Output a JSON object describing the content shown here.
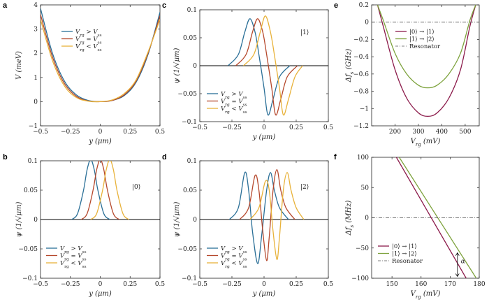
{
  "colors": {
    "blue": "#2a6f97",
    "red": "#b5482c",
    "yellow": "#e8b23a",
    "maroon": "#8b1a4a",
    "green": "#7da23c",
    "dashed": "#555555"
  },
  "chart_data": [
    {
      "panel": "a",
      "type": "line",
      "xlabel": "y (μm)",
      "ylabel": "V (meV)",
      "xlim": [
        -0.5,
        0.5
      ],
      "ylim": [
        -1,
        4
      ],
      "xticks": [
        "−0.5",
        "−0.25",
        "0",
        "0.25",
        "0.5"
      ],
      "yticks": [
        "−1",
        "0",
        "1",
        "2",
        "3",
        "4"
      ],
      "legend": [
        "V_rg > V_ss",
        "V_rg = V_ss",
        "V_rg < V_ss"
      ],
      "series": [
        {
          "name": "V_rg > V_ss",
          "x": [
            -0.5,
            -0.4,
            -0.3,
            -0.2,
            -0.1,
            0,
            0.1,
            0.2,
            0.3,
            0.4,
            0.5
          ],
          "values": [
            3.85,
            2.0,
            0.85,
            0.28,
            0.05,
            0.0,
            0.05,
            0.25,
            0.8,
            1.95,
            3.7
          ]
        },
        {
          "name": "V_rg = V_ss",
          "x": [
            -0.5,
            -0.4,
            -0.3,
            -0.2,
            -0.1,
            0,
            0.1,
            0.2,
            0.3,
            0.4,
            0.5
          ],
          "values": [
            3.6,
            1.85,
            0.75,
            0.22,
            0.03,
            0.0,
            0.05,
            0.28,
            0.85,
            2.0,
            3.55
          ]
        },
        {
          "name": "V_rg < V_ss",
          "x": [
            -0.5,
            -0.4,
            -0.3,
            -0.2,
            -0.1,
            0,
            0.1,
            0.2,
            0.3,
            0.4,
            0.5
          ],
          "values": [
            3.4,
            1.7,
            0.65,
            0.17,
            0.02,
            0.0,
            0.07,
            0.33,
            0.9,
            2.05,
            3.4
          ]
        }
      ]
    },
    {
      "panel": "b",
      "type": "line",
      "xlabel": "y (μm)",
      "ylabel": "ψ (1/√μm)",
      "xlim": [
        -0.5,
        0.5
      ],
      "ylim": [
        -0.1,
        0.1
      ],
      "xticks": [
        "−0.5",
        "−0.25",
        "0",
        "0.25",
        "0.5"
      ],
      "yticks": [
        "−0.1",
        "−0.05",
        "0",
        "0.05",
        "0.1"
      ],
      "state": "|0⟩",
      "legend": [
        "V_rg > V_ss",
        "V_rg = V_ss",
        "V_rg < V_ss"
      ],
      "series": [
        {
          "name": "V_rg > V_ss",
          "x": [
            -0.24,
            -0.19,
            -0.14,
            -0.11,
            -0.08,
            -0.05,
            -0.02,
            0.03,
            0.08
          ],
          "values": [
            0,
            0.01,
            0.05,
            0.085,
            0.102,
            0.085,
            0.05,
            0.01,
            0
          ]
        },
        {
          "name": "V_rg = V_ss",
          "x": [
            -0.16,
            -0.11,
            -0.06,
            -0.03,
            0.0,
            0.03,
            0.06,
            0.11,
            0.16
          ],
          "values": [
            0,
            0.01,
            0.05,
            0.085,
            0.102,
            0.085,
            0.05,
            0.01,
            0
          ]
        },
        {
          "name": "V_rg < V_ss",
          "x": [
            -0.08,
            -0.03,
            0.02,
            0.05,
            0.08,
            0.11,
            0.14,
            0.19,
            0.24
          ],
          "values": [
            0,
            0.01,
            0.05,
            0.085,
            0.102,
            0.085,
            0.05,
            0.01,
            0
          ]
        }
      ]
    },
    {
      "panel": "c",
      "type": "line",
      "xlabel": "y (μm)",
      "ylabel": "ψ (1/√μm)",
      "xlim": [
        -0.5,
        0.5
      ],
      "ylim": [
        -0.1,
        0.1
      ],
      "xticks": [
        "−0.5",
        "−0.25",
        "0",
        "0.25",
        "0.5"
      ],
      "yticks": [
        "−0.1",
        "−0.05",
        "0",
        "0.05",
        "0.1"
      ],
      "state": "|1⟩",
      "legend": [
        "V_rg > V_ss",
        "V_rg = V_ss",
        "V_rg < V_ss"
      ],
      "series": [
        {
          "name": "V_rg > V_ss",
          "x": [
            -0.28,
            -0.2,
            -0.15,
            -0.11,
            -0.07,
            -0.04,
            0.0,
            0.03,
            0.07,
            0.12,
            0.2
          ],
          "values": [
            0,
            0.02,
            0.06,
            0.084,
            0.06,
            0.02,
            -0.04,
            -0.088,
            -0.06,
            -0.02,
            0
          ]
        },
        {
          "name": "V_rg = V_ss",
          "x": [
            -0.22,
            -0.14,
            -0.09,
            -0.05,
            -0.01,
            0.02,
            0.06,
            0.09,
            0.13,
            0.18,
            0.26
          ],
          "values": [
            0,
            0.02,
            0.06,
            0.084,
            0.06,
            0.02,
            -0.04,
            -0.088,
            -0.06,
            -0.02,
            0
          ]
        },
        {
          "name": "V_rg < V_ss",
          "x": [
            -0.16,
            -0.08,
            -0.03,
            0.01,
            0.05,
            0.08,
            0.12,
            0.15,
            0.19,
            0.24,
            0.3
          ],
          "values": [
            0,
            0.02,
            0.06,
            0.089,
            0.06,
            0.02,
            -0.04,
            -0.088,
            -0.06,
            -0.02,
            0
          ]
        }
      ]
    },
    {
      "panel": "d",
      "type": "line",
      "xlabel": "y (μm)",
      "ylabel": "ψ (1/√μm)",
      "xlim": [
        -0.5,
        0.5
      ],
      "ylim": [
        -0.1,
        0.1
      ],
      "xticks": [
        "−0.5",
        "−0.25",
        "0",
        "0.25",
        "0.5"
      ],
      "yticks": [
        "−0.1",
        "−0.05",
        "0",
        "0.05",
        "0.1"
      ],
      "state": "|2⟩",
      "legend": [
        "V_rg > V_ss",
        "V_rg = V_ss",
        "V_rg < V_ss"
      ],
      "series": [
        {
          "name": "V_rg > V_ss",
          "x": [
            -0.27,
            -0.2,
            -0.15,
            -0.12,
            -0.09,
            -0.05,
            -0.02,
            0.02,
            0.05,
            0.08,
            0.12,
            0.19
          ],
          "values": [
            0,
            0.02,
            0.08,
            0.05,
            -0.02,
            -0.075,
            -0.03,
            0.05,
            0.08,
            0.05,
            0.02,
            0
          ]
        },
        {
          "name": "V_rg = V_ss",
          "x": [
            -0.19,
            -0.12,
            -0.07,
            -0.04,
            -0.01,
            0.02,
            0.04,
            0.07,
            0.1,
            0.13,
            0.17,
            0.24
          ],
          "values": [
            0,
            0.02,
            0.075,
            0.05,
            -0.02,
            -0.07,
            -0.03,
            0.05,
            0.085,
            0.05,
            0.02,
            0
          ]
        },
        {
          "name": "V_rg < V_ss",
          "x": [
            -0.11,
            -0.04,
            0.01,
            0.04,
            0.07,
            0.1,
            0.12,
            0.15,
            0.18,
            0.21,
            0.25,
            0.31
          ],
          "values": [
            0,
            0.02,
            0.065,
            0.05,
            -0.02,
            -0.068,
            -0.03,
            0.05,
            0.08,
            0.05,
            0.02,
            0
          ]
        }
      ]
    },
    {
      "panel": "e",
      "type": "line",
      "xlabel": "V_rg (mV)",
      "ylabel": "Δf_s (GHz)",
      "xlim": [
        100,
        560
      ],
      "ylim": [
        -1.2,
        0.2
      ],
      "xticks": [
        "200",
        "300",
        "400",
        "500"
      ],
      "yticks": [
        "−1.2",
        "−1",
        "−0.8",
        "−0.6",
        "−0.4",
        "−0.2",
        "0",
        "0.2"
      ],
      "legend": [
        "|0⟩ → |1⟩",
        "|1⟩ → |2⟩",
        "Resonator"
      ],
      "series": [
        {
          "name": "|0⟩ → |1⟩",
          "x": [
            125,
            150,
            200,
            250,
            300,
            340,
            380,
            430,
            480,
            520,
            545
          ],
          "values": [
            0.2,
            -0.05,
            -0.55,
            -0.88,
            -1.05,
            -1.09,
            -1.05,
            -0.88,
            -0.55,
            -0.05,
            0.2
          ]
        },
        {
          "name": "|1⟩ → |2⟩",
          "x": [
            125,
            150,
            200,
            250,
            300,
            340,
            380,
            430,
            480,
            520,
            545
          ],
          "values": [
            0.2,
            0.02,
            -0.36,
            -0.6,
            -0.73,
            -0.76,
            -0.73,
            -0.6,
            -0.36,
            0.02,
            0.2
          ]
        },
        {
          "name": "Resonator",
          "x": [
            100,
            560
          ],
          "values": [
            0,
            0
          ]
        }
      ]
    },
    {
      "panel": "f",
      "type": "line",
      "xlabel": "V_rg (mV)",
      "ylabel": "Δf_s (MHz)",
      "xlim": [
        143,
        180
      ],
      "ylim": [
        -100,
        100
      ],
      "xticks": [
        "150",
        "160",
        "170",
        "180"
      ],
      "yticks": [
        "−100",
        "−50",
        "0",
        "50",
        "100"
      ],
      "legend": [
        "|0⟩ → |1⟩",
        "|1⟩ → |2⟩",
        "Resonator"
      ],
      "annotation": "α",
      "series": [
        {
          "name": "|0⟩ → |1⟩",
          "x": [
            151.5,
            175.5
          ],
          "values": [
            100,
            -100
          ]
        },
        {
          "name": "|1⟩ → |2⟩",
          "x": [
            152.5,
            179
          ],
          "values": [
            100,
            -100
          ]
        },
        {
          "name": "Resonator",
          "x": [
            143,
            180
          ],
          "values": [
            0,
            0
          ]
        }
      ]
    }
  ]
}
